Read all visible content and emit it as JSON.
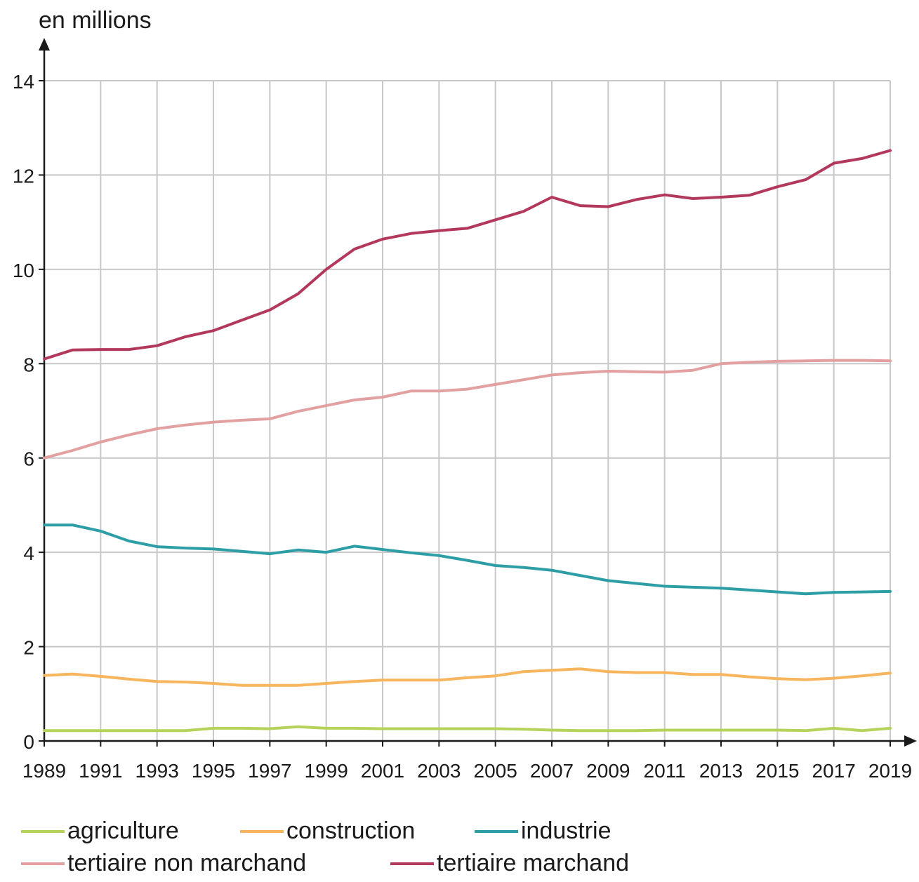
{
  "chart_data": {
    "type": "line",
    "ylabel": "en millions",
    "xlabel": "",
    "ylim": [
      0,
      14
    ],
    "xlim": [
      1989,
      2019
    ],
    "yticks": [
      "0",
      "2",
      "4",
      "6",
      "8",
      "10",
      "12",
      "14"
    ],
    "xticks": [
      "1989",
      "1991",
      "1993",
      "1995",
      "1997",
      "1999",
      "2001",
      "2003",
      "2005",
      "2007",
      "2009",
      "2011",
      "2013",
      "2015",
      "2017",
      "2019"
    ],
    "grid": true,
    "legend_position": "bottom",
    "x": [
      1989,
      1990,
      1991,
      1992,
      1993,
      1994,
      1995,
      1996,
      1997,
      1998,
      1999,
      2000,
      2001,
      2002,
      2003,
      2004,
      2005,
      2006,
      2007,
      2008,
      2009,
      2010,
      2011,
      2012,
      2013,
      2014,
      2015,
      2016,
      2017,
      2018,
      2019
    ],
    "series": [
      {
        "name": "agriculture",
        "color": "#b5d35a",
        "values": [
          0.22,
          0.22,
          0.22,
          0.22,
          0.22,
          0.22,
          0.27,
          0.27,
          0.26,
          0.3,
          0.27,
          0.27,
          0.26,
          0.26,
          0.26,
          0.26,
          0.26,
          0.25,
          0.23,
          0.22,
          0.22,
          0.22,
          0.23,
          0.23,
          0.23,
          0.23,
          0.23,
          0.22,
          0.27,
          0.22,
          0.27
        ]
      },
      {
        "name": "construction",
        "color": "#f7b55d",
        "values": [
          1.39,
          1.42,
          1.37,
          1.31,
          1.26,
          1.25,
          1.22,
          1.18,
          1.18,
          1.18,
          1.22,
          1.26,
          1.29,
          1.29,
          1.29,
          1.34,
          1.38,
          1.47,
          1.5,
          1.53,
          1.47,
          1.45,
          1.45,
          1.41,
          1.41,
          1.36,
          1.32,
          1.3,
          1.33,
          1.38,
          1.44
        ]
      },
      {
        "name": "industrie",
        "color": "#2e9ea6",
        "values": [
          4.58,
          4.58,
          4.45,
          4.24,
          4.12,
          4.09,
          4.07,
          4.02,
          3.97,
          4.05,
          4.0,
          4.13,
          4.06,
          3.99,
          3.93,
          3.83,
          3.72,
          3.68,
          3.62,
          3.51,
          3.4,
          3.34,
          3.28,
          3.26,
          3.24,
          3.2,
          3.16,
          3.12,
          3.15,
          3.16,
          3.17
        ]
      },
      {
        "name": "tertiaire non marchand",
        "color": "#e2a1a0",
        "values": [
          6.0,
          6.16,
          6.34,
          6.49,
          6.62,
          6.7,
          6.76,
          6.8,
          6.83,
          6.99,
          7.11,
          7.23,
          7.29,
          7.42,
          7.42,
          7.46,
          7.56,
          7.66,
          7.76,
          7.81,
          7.84,
          7.83,
          7.82,
          7.86,
          8.0,
          8.03,
          8.05,
          8.06,
          8.07,
          8.07,
          8.06
        ]
      },
      {
        "name": "tertiaire marchand",
        "color": "#b2385c",
        "values": [
          8.1,
          8.29,
          8.3,
          8.3,
          8.38,
          8.57,
          8.7,
          8.92,
          9.14,
          9.48,
          10.0,
          10.43,
          10.64,
          10.76,
          10.82,
          10.87,
          11.05,
          11.23,
          11.53,
          11.35,
          11.33,
          11.48,
          11.58,
          11.5,
          11.53,
          11.57,
          11.75,
          11.9,
          12.25,
          12.35,
          12.52
        ]
      }
    ]
  }
}
